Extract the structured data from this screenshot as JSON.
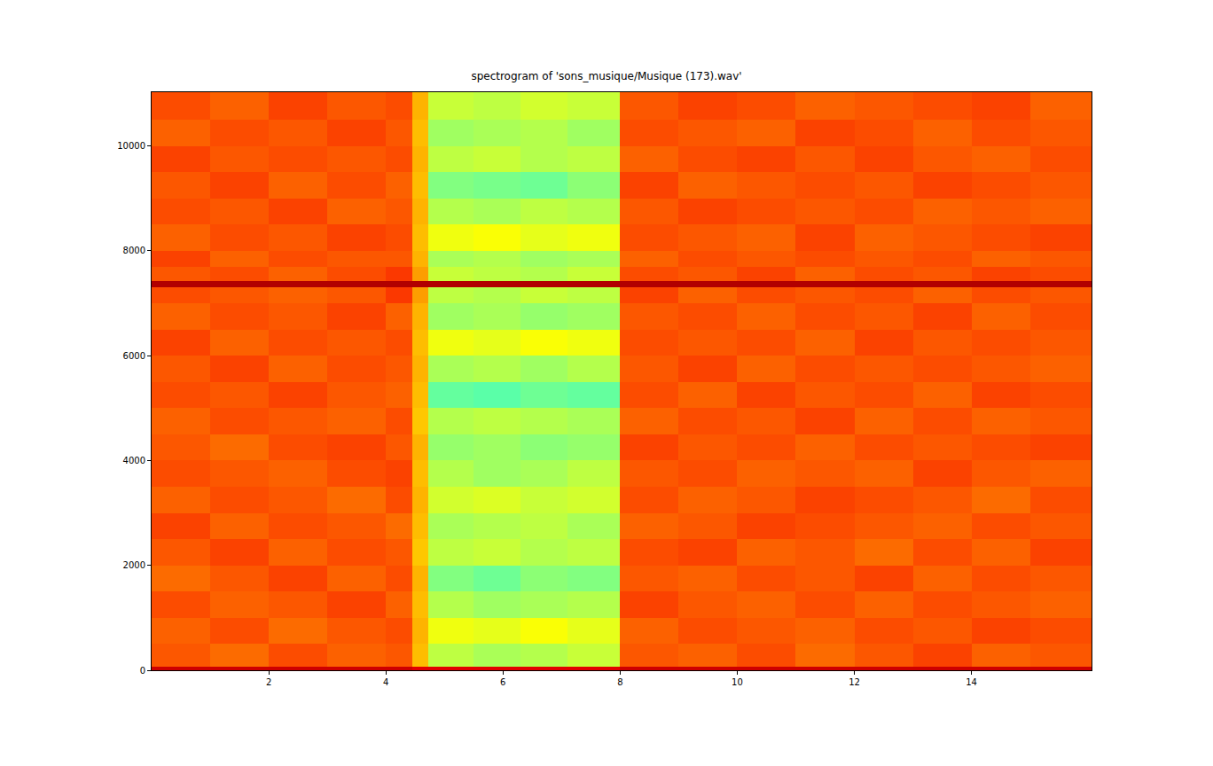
{
  "chart_data": {
    "type": "heatmap",
    "title": "spectrogram of 'sons_musique/Musique (173).wav'",
    "x": [
      0,
      1,
      2,
      3,
      4,
      4.45,
      4.72,
      5.5,
      6.3,
      7.1,
      8.0,
      9,
      10,
      11,
      12,
      13,
      14,
      15,
      16.05
    ],
    "y": [
      0,
      60,
      500,
      1000,
      1500,
      2000,
      2500,
      3000,
      3500,
      4000,
      4500,
      5000,
      5500,
      6000,
      6500,
      7000,
      7300,
      7420,
      7700,
      8000,
      8500,
      9000,
      9500,
      10000,
      10500,
      11025
    ],
    "z": [
      [
        0.92,
        0.92,
        0.92,
        0.92,
        0.92,
        0.9,
        0.9,
        0.9,
        0.9,
        0.9,
        0.92,
        0.92,
        0.92,
        0.92,
        0.92,
        0.92,
        0.92,
        0.92
      ],
      [
        0.79,
        0.77,
        0.8,
        0.78,
        0.79,
        0.69,
        0.56,
        0.54,
        0.55,
        0.57,
        0.79,
        0.78,
        0.8,
        0.77,
        0.79,
        0.81,
        0.78,
        0.79
      ],
      [
        0.78,
        0.8,
        0.77,
        0.79,
        0.8,
        0.7,
        0.61,
        0.6,
        0.62,
        0.6,
        0.78,
        0.8,
        0.79,
        0.78,
        0.8,
        0.79,
        0.81,
        0.8
      ],
      [
        0.8,
        0.78,
        0.79,
        0.81,
        0.78,
        0.69,
        0.55,
        0.53,
        0.54,
        0.55,
        0.81,
        0.79,
        0.78,
        0.8,
        0.78,
        0.8,
        0.79,
        0.78
      ],
      [
        0.77,
        0.79,
        0.81,
        0.78,
        0.8,
        0.7,
        0.5,
        0.48,
        0.51,
        0.5,
        0.79,
        0.78,
        0.8,
        0.79,
        0.81,
        0.78,
        0.8,
        0.79
      ],
      [
        0.79,
        0.81,
        0.78,
        0.8,
        0.79,
        0.68,
        0.56,
        0.57,
        0.55,
        0.56,
        0.8,
        0.81,
        0.78,
        0.79,
        0.77,
        0.8,
        0.78,
        0.81
      ],
      [
        0.81,
        0.78,
        0.8,
        0.79,
        0.77,
        0.69,
        0.54,
        0.55,
        0.56,
        0.54,
        0.78,
        0.79,
        0.81,
        0.8,
        0.79,
        0.78,
        0.8,
        0.79
      ],
      [
        0.78,
        0.8,
        0.79,
        0.77,
        0.8,
        0.7,
        0.58,
        0.59,
        0.57,
        0.58,
        0.8,
        0.78,
        0.79,
        0.81,
        0.8,
        0.79,
        0.77,
        0.8
      ],
      [
        0.8,
        0.79,
        0.78,
        0.8,
        0.81,
        0.69,
        0.55,
        0.53,
        0.54,
        0.56,
        0.79,
        0.8,
        0.78,
        0.79,
        0.78,
        0.81,
        0.79,
        0.78
      ],
      [
        0.79,
        0.77,
        0.8,
        0.81,
        0.79,
        0.7,
        0.52,
        0.53,
        0.51,
        0.52,
        0.81,
        0.79,
        0.8,
        0.78,
        0.8,
        0.79,
        0.8,
        0.81
      ],
      [
        0.78,
        0.8,
        0.79,
        0.78,
        0.8,
        0.68,
        0.55,
        0.56,
        0.55,
        0.54,
        0.78,
        0.8,
        0.79,
        0.81,
        0.78,
        0.8,
        0.78,
        0.79
      ],
      [
        0.8,
        0.79,
        0.81,
        0.79,
        0.78,
        0.69,
        0.47,
        0.46,
        0.48,
        0.47,
        0.8,
        0.78,
        0.81,
        0.79,
        0.8,
        0.78,
        0.81,
        0.8
      ],
      [
        0.79,
        0.81,
        0.78,
        0.8,
        0.79,
        0.7,
        0.54,
        0.55,
        0.53,
        0.55,
        0.79,
        0.81,
        0.78,
        0.8,
        0.79,
        0.8,
        0.79,
        0.78
      ],
      [
        0.81,
        0.78,
        0.8,
        0.79,
        0.8,
        0.69,
        0.61,
        0.6,
        0.62,
        0.61,
        0.8,
        0.79,
        0.8,
        0.78,
        0.81,
        0.79,
        0.8,
        0.79
      ],
      [
        0.78,
        0.8,
        0.79,
        0.81,
        0.78,
        0.7,
        0.53,
        0.54,
        0.52,
        0.53,
        0.79,
        0.8,
        0.78,
        0.8,
        0.79,
        0.81,
        0.78,
        0.8
      ],
      [
        0.8,
        0.79,
        0.78,
        0.79,
        0.82,
        0.72,
        0.56,
        0.55,
        0.57,
        0.56,
        0.81,
        0.78,
        0.8,
        0.79,
        0.8,
        0.78,
        0.8,
        0.79
      ],
      [
        0.95,
        0.95,
        0.95,
        0.95,
        0.95,
        0.95,
        0.95,
        0.95,
        0.95,
        0.95,
        0.95,
        0.95,
        0.95,
        0.95,
        0.95,
        0.95,
        0.95,
        0.95
      ],
      [
        0.79,
        0.8,
        0.78,
        0.8,
        0.82,
        0.72,
        0.57,
        0.56,
        0.55,
        0.57,
        0.8,
        0.79,
        0.81,
        0.78,
        0.8,
        0.79,
        0.81,
        0.8
      ],
      [
        0.81,
        0.78,
        0.8,
        0.79,
        0.79,
        0.7,
        0.54,
        0.55,
        0.53,
        0.54,
        0.78,
        0.8,
        0.79,
        0.8,
        0.79,
        0.8,
        0.78,
        0.79
      ],
      [
        0.78,
        0.8,
        0.79,
        0.81,
        0.8,
        0.69,
        0.61,
        0.62,
        0.6,
        0.61,
        0.8,
        0.79,
        0.78,
        0.81,
        0.78,
        0.79,
        0.8,
        0.81
      ],
      [
        0.8,
        0.79,
        0.81,
        0.78,
        0.79,
        0.7,
        0.55,
        0.54,
        0.56,
        0.55,
        0.79,
        0.81,
        0.8,
        0.79,
        0.8,
        0.78,
        0.79,
        0.78
      ],
      [
        0.79,
        0.81,
        0.78,
        0.8,
        0.78,
        0.69,
        0.5,
        0.49,
        0.48,
        0.51,
        0.81,
        0.78,
        0.79,
        0.8,
        0.79,
        0.81,
        0.8,
        0.79
      ],
      [
        0.81,
        0.79,
        0.8,
        0.79,
        0.8,
        0.7,
        0.56,
        0.57,
        0.55,
        0.56,
        0.78,
        0.8,
        0.81,
        0.79,
        0.81,
        0.79,
        0.78,
        0.8
      ],
      [
        0.78,
        0.8,
        0.79,
        0.81,
        0.79,
        0.69,
        0.53,
        0.54,
        0.55,
        0.53,
        0.8,
        0.79,
        0.78,
        0.81,
        0.8,
        0.78,
        0.8,
        0.79
      ],
      [
        0.8,
        0.78,
        0.81,
        0.79,
        0.8,
        0.7,
        0.57,
        0.56,
        0.58,
        0.57,
        0.79,
        0.81,
        0.8,
        0.78,
        0.79,
        0.8,
        0.81,
        0.78
      ]
    ],
    "zlim": [
      0,
      1
    ],
    "xlim": [
      0,
      16.05
    ],
    "ylim": [
      0,
      11025
    ],
    "xticks": [
      2,
      4,
      6,
      8,
      10,
      12,
      14
    ],
    "yticks": [
      0,
      2000,
      4000,
      6000,
      8000,
      10000
    ],
    "grid": false
  }
}
